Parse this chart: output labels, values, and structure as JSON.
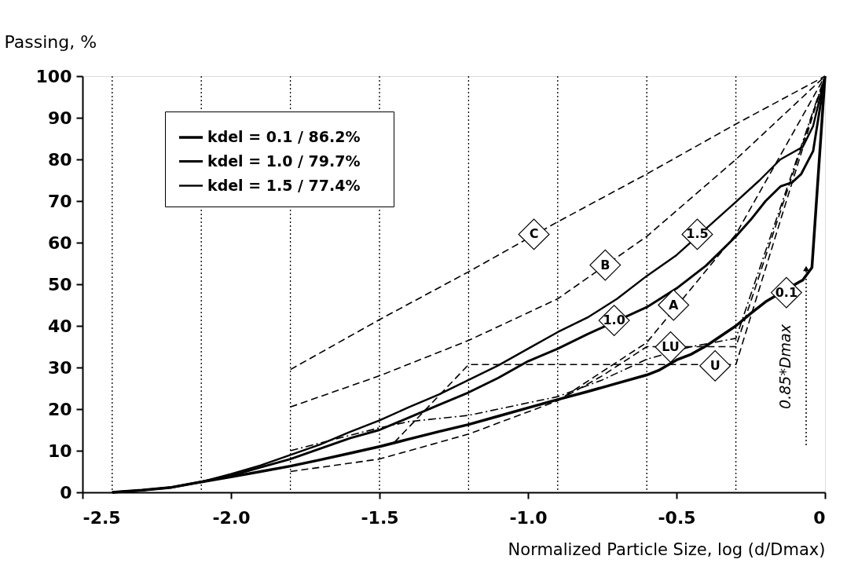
{
  "chart_data": {
    "type": "line",
    "ylabel": "Passing, %",
    "xlabel": "Normalized Particle Size, log (d/Dmax)",
    "xlim": [
      -2.5,
      0
    ],
    "ylim": [
      0,
      100
    ],
    "xticks": [
      {
        "value": -2.5,
        "label": "-2.5"
      },
      {
        "value": -2.0,
        "label": "-2.0"
      },
      {
        "value": -1.5,
        "label": "-1.5"
      },
      {
        "value": -1.0,
        "label": "-1.0"
      },
      {
        "value": -0.5,
        "label": "-0.5"
      },
      0
    ],
    "yticks": [
      0,
      10,
      20,
      30,
      40,
      50,
      60,
      70,
      80,
      90,
      100
    ],
    "grid": false,
    "legend": "top left",
    "series": [
      {
        "name": "kdel = 0.1   /   86.2%",
        "color": "#000000",
        "line_style": "solid",
        "x": [
          -2.4,
          -2.3,
          -2.2,
          -2.1,
          -2.0,
          -1.9,
          -1.8,
          -1.7,
          -1.6,
          -1.5,
          -1.4,
          -1.3,
          -1.2,
          -1.1,
          -1.0,
          -0.9,
          -0.8,
          -0.7,
          -0.6,
          -0.56,
          -0.5,
          -0.45,
          -0.4,
          -0.35,
          -0.3,
          -0.25,
          -0.2,
          -0.1,
          -0.075,
          -0.044,
          0
        ],
        "values": [
          0,
          0.5,
          1.2,
          2.5,
          3.7,
          5,
          6.3,
          7.8,
          9.4,
          11,
          12.8,
          14.6,
          16.3,
          18.3,
          20.3,
          22.3,
          24.2,
          26.2,
          28.2,
          29.3,
          31.8,
          33.2,
          35.2,
          37.6,
          40,
          43,
          45.8,
          50,
          51,
          54,
          100
        ]
      },
      {
        "name": "kdel = 1.0   /   79.7%",
        "color": "#000000",
        "line_style": "solid",
        "x": [
          -2.4,
          -2.3,
          -2.2,
          -2.1,
          -2.0,
          -1.9,
          -1.8,
          -1.7,
          -1.6,
          -1.5,
          -1.4,
          -1.3,
          -1.2,
          -1.1,
          -1.0,
          -0.9,
          -0.8,
          -0.6,
          -0.5,
          -0.4,
          -0.3,
          -0.25,
          -0.2,
          -0.15,
          -0.11,
          -0.08,
          -0.04,
          0
        ],
        "values": [
          0,
          0.5,
          1.2,
          2.5,
          4,
          6,
          8,
          10.5,
          13,
          15,
          18,
          21,
          24,
          27.5,
          31.5,
          34.5,
          38,
          44.5,
          49,
          54.5,
          61.5,
          65.5,
          70,
          73.5,
          74.5,
          76.5,
          82,
          100
        ]
      },
      {
        "name": "kdel = 1.5   /   77.4%",
        "color": "#000000",
        "line_style": "solid",
        "x": [
          -2.4,
          -2.3,
          -2.2,
          -2.1,
          -2.0,
          -1.9,
          -1.8,
          -1.7,
          -1.6,
          -1.5,
          -1.4,
          -1.3,
          -1.2,
          -1.1,
          -1.0,
          -0.9,
          -0.8,
          -0.7,
          -0.6,
          -0.5,
          -0.3,
          -0.22,
          -0.15,
          -0.075,
          -0.04,
          0
        ],
        "values": [
          0,
          0.5,
          1.2,
          2.5,
          4.4,
          6.5,
          9,
          11.5,
          14.5,
          17.3,
          20.5,
          23.5,
          27,
          30.5,
          34.5,
          38.5,
          42,
          46.5,
          52,
          57,
          69.8,
          75,
          80,
          83,
          88,
          100
        ]
      },
      {
        "color": "#000000",
        "line_style": "dashed",
        "x": [
          -1.8,
          -1.5,
          -1.2,
          -0.9,
          -0.6,
          -0.3,
          0
        ],
        "values": [
          29.5,
          41.5,
          53,
          65,
          76.5,
          88.5,
          100
        ]
      },
      {
        "color": "#000000",
        "line_style": "dashed",
        "x": [
          -1.8,
          -1.5,
          -1.2,
          -0.9,
          -0.6,
          -0.3,
          0
        ],
        "values": [
          20.5,
          28,
          36.5,
          46.5,
          61.5,
          80,
          100
        ]
      },
      {
        "color": "#000000",
        "line_style": "dashed",
        "x": [
          -1.8,
          -1.5,
          -1.2,
          -0.9,
          -0.6,
          -0.3,
          0
        ],
        "values": [
          5,
          8,
          14,
          22,
          36,
          62,
          100
        ]
      },
      {
        "color": "#000000",
        "line_style": "dashed",
        "x": [
          -0.9,
          -0.75,
          -0.6,
          -0.3,
          0
        ],
        "values": [
          22,
          28,
          35,
          35,
          100
        ]
      },
      {
        "color": "#000000",
        "line_style": "dashed",
        "x": [
          -1.45,
          -1.2,
          -0.3,
          0
        ],
        "values": [
          12,
          30.7,
          30.7,
          100
        ]
      },
      {
        "color": "#000000",
        "line_style": "dashdot",
        "x": [
          -1.8,
          -1.5,
          -1.4,
          -1.2,
          -0.9,
          -0.75,
          -0.6,
          -0.45,
          -0.3,
          0
        ],
        "values": [
          10,
          15.5,
          17,
          18.5,
          23,
          27,
          32,
          35,
          37,
          100
        ]
      }
    ],
    "ref_lines": [
      {
        "axis": "x",
        "value": -2.4,
        "line_style": "dotted",
        "color": "#000000"
      },
      {
        "axis": "x",
        "value": -2.1,
        "line_style": "dotted",
        "color": "#000000"
      },
      {
        "axis": "x",
        "value": -1.8,
        "line_style": "dotted",
        "color": "#000000"
      },
      {
        "axis": "x",
        "value": -1.5,
        "line_style": "dotted",
        "color": "#000000"
      },
      {
        "axis": "x",
        "value": -1.2,
        "line_style": "dotted",
        "color": "#000000"
      },
      {
        "axis": "x",
        "value": -0.9,
        "line_style": "dotted",
        "color": "#000000"
      },
      {
        "axis": "x",
        "value": -0.6,
        "line_style": "dotted",
        "color": "#000000"
      },
      {
        "axis": "x",
        "value": -0.3,
        "line_style": "dotted",
        "color": "#000000"
      }
    ],
    "annotations": [
      {
        "text": "C",
        "x": -0.98,
        "y": 62
      },
      {
        "text": "B",
        "x": -0.74,
        "y": 54.6
      },
      {
        "text": "1.5",
        "x": -0.43,
        "y": 62
      },
      {
        "text": "A",
        "x": -0.51,
        "y": 45
      },
      {
        "text": "1.0",
        "x": -0.71,
        "y": 41.3
      },
      {
        "text": "LU",
        "x": -0.52,
        "y": 34.9
      },
      {
        "text": "U",
        "x": -0.37,
        "y": 30.4
      },
      {
        "text": "0.1",
        "x": -0.13,
        "y": 48
      },
      "0.85*Dmax"
    ]
  }
}
